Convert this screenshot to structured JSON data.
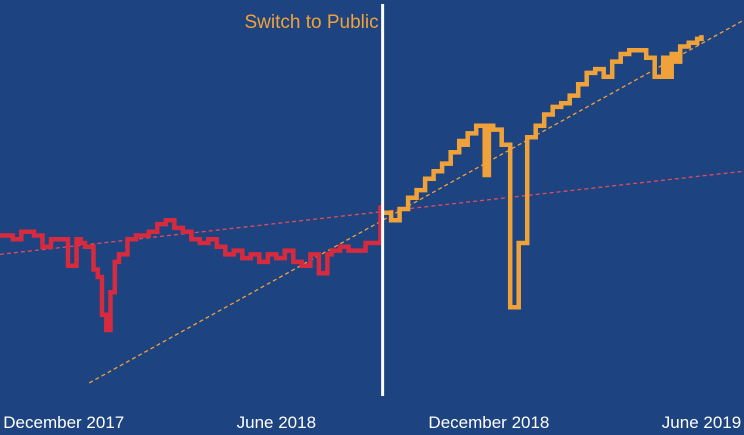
{
  "chart_data": {
    "type": "line",
    "title": "",
    "xlabel": "",
    "ylabel": "",
    "x_tick_labels": [
      "December 2017",
      "June 2018",
      "December 2018",
      "June 2019"
    ],
    "x_tick_values": [
      0.0,
      0.5,
      1.0,
      1.5
    ],
    "x_range": [
      -0.15,
      1.6
    ],
    "y_range": [
      0,
      100
    ],
    "grid": false,
    "legend": "none",
    "background_color": "#1d4380",
    "annotation": {
      "text": "Switch to Public",
      "x": 0.75,
      "color": "#f0a23a",
      "line_color": "#ffffff"
    },
    "series": [
      {
        "color": "#d62b3f",
        "step": true,
        "x": [
          -0.15,
          -0.12,
          -0.1,
          -0.07,
          -0.05,
          -0.03,
          -0.01,
          0.01,
          0.03,
          0.04,
          0.05,
          0.06,
          0.07,
          0.08,
          0.09,
          0.1,
          0.11,
          0.12,
          0.13,
          0.15,
          0.17,
          0.2,
          0.22,
          0.24,
          0.26,
          0.28,
          0.3,
          0.32,
          0.34,
          0.36,
          0.38,
          0.4,
          0.42,
          0.44,
          0.46,
          0.48,
          0.5,
          0.52,
          0.54,
          0.56,
          0.58,
          0.6,
          0.62,
          0.63,
          0.65,
          0.67,
          0.69,
          0.71,
          0.73,
          0.74,
          0.745
        ],
        "y": [
          43,
          42,
          44,
          43,
          40,
          42,
          42,
          35,
          42,
          41,
          40,
          40,
          34,
          32,
          22,
          18,
          28,
          36,
          38,
          42,
          43,
          44,
          46,
          47,
          45,
          44,
          42,
          41,
          42,
          40,
          38,
          39,
          37,
          38,
          36,
          38,
          37,
          39,
          36,
          35,
          38,
          33,
          38,
          39,
          40,
          39,
          39,
          41,
          41,
          41,
          51
        ]
      },
      {
        "color": "#f0a23a",
        "step": true,
        "x": [
          0.75,
          0.77,
          0.79,
          0.81,
          0.83,
          0.85,
          0.87,
          0.89,
          0.91,
          0.93,
          0.94,
          0.95,
          0.97,
          0.99,
          1.0,
          1.01,
          1.03,
          1.05,
          1.07,
          1.09,
          1.11,
          1.13,
          1.15,
          1.17,
          1.19,
          1.21,
          1.23,
          1.25,
          1.27,
          1.29,
          1.31,
          1.33,
          1.35,
          1.37,
          1.39,
          1.41,
          1.42,
          1.43,
          1.44,
          1.45,
          1.47,
          1.48,
          1.49,
          1.5
        ],
        "y": [
          49,
          47,
          50,
          53,
          55,
          58,
          60,
          62,
          65,
          68,
          67,
          70,
          72,
          59,
          72,
          71,
          67,
          24,
          41,
          69,
          72,
          75,
          77,
          78,
          80,
          83,
          86,
          87,
          85,
          89,
          91,
          92,
          92,
          90,
          85,
          90,
          85,
          91,
          89,
          93,
          94,
          94,
          95,
          96
        ]
      }
    ],
    "trend_lines": [
      {
        "color": "#e04b5c",
        "style": "dashed",
        "x": [
          -0.15,
          1.6
        ],
        "y": [
          38,
          60
        ]
      },
      {
        "color": "#f0a23a",
        "style": "dashed",
        "x": [
          0.06,
          1.6
        ],
        "y": [
          4,
          100
        ]
      }
    ]
  }
}
